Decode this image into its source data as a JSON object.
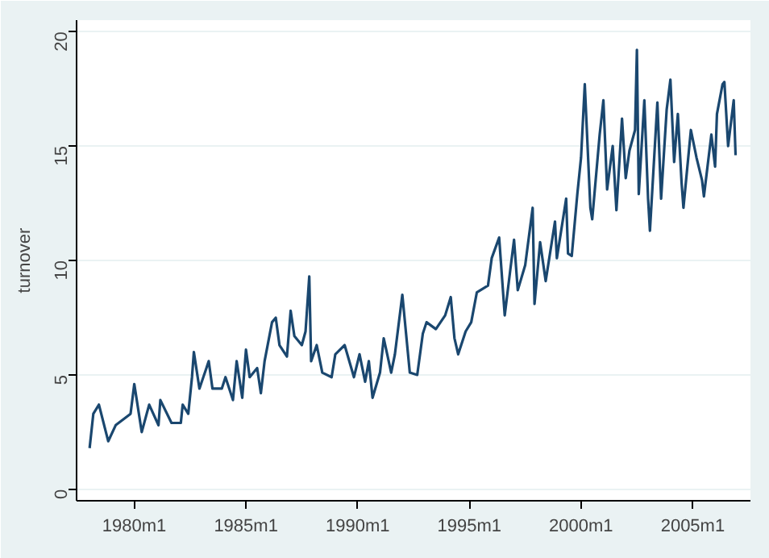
{
  "chart_data": {
    "type": "line",
    "ylabel": "turnover",
    "grid": "y",
    "marker": "none",
    "line_style": "solid",
    "xlim": [
      "1977-06",
      "2007-08"
    ],
    "ylim": [
      -0.5,
      20.5
    ],
    "xticks": [
      {
        "value": "1980-01",
        "label": "1980m1"
      },
      {
        "value": "1985-01",
        "label": "1985m1"
      },
      {
        "value": "1990-01",
        "label": "1990m1"
      },
      {
        "value": "1995-01",
        "label": "1995m1"
      },
      {
        "value": "2000-01",
        "label": "2000m1"
      },
      {
        "value": "2005-01",
        "label": "2005m1"
      }
    ],
    "yticks": [
      0,
      5,
      10,
      15,
      20
    ],
    "x": [
      "1978-01",
      "1978-03",
      "1978-06",
      "1978-11",
      "1979-03",
      "1979-11",
      "1980-01",
      "1980-05",
      "1980-09",
      "1981-02",
      "1981-03",
      "1981-09",
      "1982-02",
      "1982-03",
      "1982-06",
      "1982-08",
      "1982-09",
      "1982-12",
      "1983-05",
      "1983-07",
      "1983-12",
      "1984-02",
      "1984-06",
      "1984-08",
      "1984-11",
      "1985-01",
      "1985-03",
      "1985-07",
      "1985-09",
      "1985-11",
      "1986-03",
      "1986-05",
      "1986-07",
      "1986-11",
      "1987-01",
      "1987-03",
      "1987-07",
      "1987-09",
      "1987-11",
      "1987-12",
      "1988-03",
      "1988-06",
      "1988-11",
      "1989-01",
      "1989-06",
      "1989-11",
      "1990-02",
      "1990-05",
      "1990-07",
      "1990-09",
      "1991-01",
      "1991-03",
      "1991-07",
      "1991-09",
      "1992-01",
      "1992-05",
      "1992-09",
      "1992-12",
      "1993-02",
      "1993-07",
      "1993-12",
      "1994-03",
      "1994-05",
      "1994-07",
      "1994-11",
      "1995-02",
      "1995-05",
      "1995-11",
      "1996-01",
      "1996-05",
      "1996-08",
      "1996-11",
      "1997-01",
      "1997-03",
      "1997-07",
      "1997-11",
      "1997-12",
      "1998-03",
      "1998-06",
      "1998-11",
      "1998-12",
      "1999-05",
      "1999-06",
      "1999-08",
      "1999-11",
      "2000-01",
      "2000-03",
      "2000-06",
      "2000-07",
      "2000-11",
      "2001-01",
      "2001-03",
      "2001-06",
      "2001-08",
      "2001-11",
      "2002-01",
      "2002-03",
      "2002-06",
      "2002-07",
      "2002-08",
      "2002-11",
      "2003-01",
      "2003-02",
      "2003-06",
      "2003-08",
      "2003-11",
      "2004-01",
      "2004-03",
      "2004-05",
      "2004-07",
      "2004-08",
      "2004-12",
      "2005-03",
      "2005-06",
      "2005-07",
      "2005-11",
      "2006-01",
      "2006-02",
      "2006-05",
      "2006-06",
      "2006-08",
      "2006-11",
      "2006-12"
    ],
    "series": [
      {
        "color": "#1a476f",
        "values": [
          1.8,
          3.3,
          3.7,
          2.1,
          2.8,
          3.3,
          4.6,
          2.5,
          3.7,
          2.8,
          3.9,
          2.9,
          2.9,
          3.7,
          3.3,
          4.9,
          6.0,
          4.4,
          5.6,
          4.4,
          4.4,
          4.9,
          3.9,
          5.6,
          4.0,
          6.1,
          4.9,
          5.3,
          4.2,
          5.6,
          7.3,
          7.5,
          6.3,
          5.8,
          7.8,
          6.7,
          6.3,
          6.9,
          9.3,
          5.6,
          6.3,
          5.1,
          4.9,
          5.9,
          6.3,
          4.9,
          5.9,
          4.7,
          5.6,
          4.0,
          5.1,
          6.6,
          5.1,
          5.9,
          8.5,
          5.1,
          5.0,
          6.8,
          7.3,
          7.0,
          7.6,
          8.4,
          6.6,
          5.9,
          6.9,
          7.3,
          8.6,
          8.9,
          10.1,
          11.0,
          7.6,
          9.6,
          10.9,
          8.7,
          9.8,
          12.3,
          8.1,
          10.8,
          9.1,
          11.7,
          10.1,
          12.7,
          10.3,
          10.2,
          12.9,
          14.5,
          17.7,
          12.3,
          11.8,
          15.5,
          17.0,
          13.1,
          15.0,
          12.2,
          16.2,
          13.6,
          14.8,
          15.7,
          19.2,
          12.9,
          17.0,
          12.7,
          11.3,
          16.9,
          12.7,
          16.6,
          17.9,
          14.3,
          16.4,
          13.4,
          12.3,
          15.7,
          14.5,
          13.5,
          12.8,
          15.5,
          14.1,
          16.4,
          17.7,
          17.8,
          15.0,
          17.0,
          14.6
        ]
      }
    ]
  }
}
